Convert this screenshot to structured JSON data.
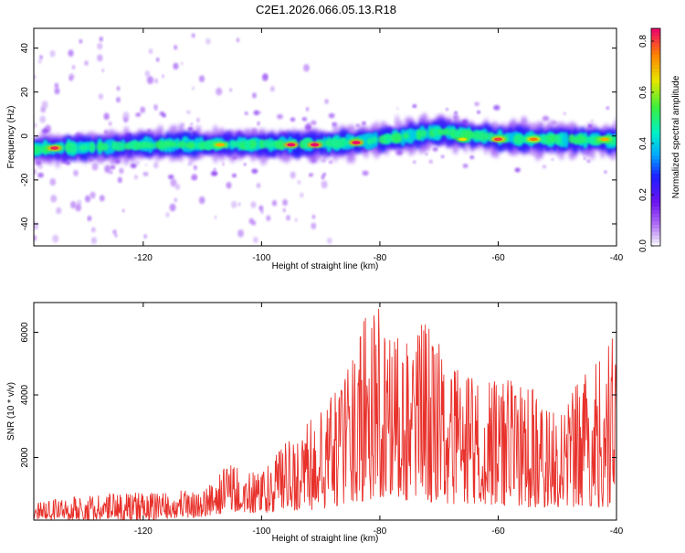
{
  "title": "C2E1.2026.066.05.13.R18",
  "chart_data": [
    {
      "type": "heatmap",
      "name": "spectrogram",
      "xlabel": "Height of straight line (km)",
      "ylabel": "Frequency (Hz)",
      "xlim": [
        -138.5,
        -40
      ],
      "ylim": [
        -50,
        49
      ],
      "xticks": [
        -120,
        -100,
        -80,
        -60,
        -40
      ],
      "yticks": [
        -40,
        -20,
        0,
        20,
        40
      ],
      "colorbar": {
        "label": "Normalized spectral amplitude",
        "range": [
          0.0,
          0.85
        ],
        "ticks": [
          "0.0",
          "0.2",
          "0.4",
          "0.6",
          "0.8"
        ],
        "tick_values": [
          0.0,
          0.2,
          0.4,
          0.6,
          0.8
        ]
      },
      "ridge": {
        "description_points": [
          [
            -138.5,
            -6
          ],
          [
            -120,
            -4
          ],
          [
            -100,
            -4
          ],
          [
            -85,
            -3
          ],
          [
            -75,
            0
          ],
          [
            -70,
            2
          ],
          [
            -60,
            -1
          ],
          [
            -40,
            -2
          ]
        ],
        "peaks": [
          {
            "x": -135,
            "y": -5.5,
            "amp": 0.82
          },
          {
            "x": -107,
            "y": -4,
            "amp": 0.7
          },
          {
            "x": -95,
            "y": -4,
            "amp": 0.85
          },
          {
            "x": -91,
            "y": -4,
            "amp": 0.85
          },
          {
            "x": -84,
            "y": -3,
            "amp": 0.85
          },
          {
            "x": -66,
            "y": -1.5,
            "amp": 0.65
          },
          {
            "x": -60,
            "y": -1.5,
            "amp": 0.8
          },
          {
            "x": -54,
            "y": -1.5,
            "amp": 0.75
          },
          {
            "x": -42,
            "y": -1.5,
            "amp": 0.7
          }
        ]
      }
    },
    {
      "type": "line",
      "name": "snr",
      "xlabel": "Height of straight line (km)",
      "ylabel": "SNR (10 * v/v)",
      "xlim": [
        -138.5,
        -40
      ],
      "ylim": [
        0,
        6950
      ],
      "xticks": [
        -120,
        -100,
        -80,
        -60,
        -40
      ],
      "yticks": [
        2000,
        4000,
        6000
      ],
      "color": "#e8312b",
      "envelope": [
        {
          "x": -138.5,
          "low": 0,
          "high": 600
        },
        {
          "x": -130,
          "low": 0,
          "high": 800
        },
        {
          "x": -120,
          "low": 0,
          "high": 900
        },
        {
          "x": -110,
          "low": 100,
          "high": 1000
        },
        {
          "x": -106,
          "low": 200,
          "high": 1800
        },
        {
          "x": -100,
          "low": 200,
          "high": 1500
        },
        {
          "x": -95,
          "low": 300,
          "high": 2700
        },
        {
          "x": -90,
          "low": 300,
          "high": 3600
        },
        {
          "x": -86,
          "low": 500,
          "high": 4500
        },
        {
          "x": -83,
          "low": 600,
          "high": 6500
        },
        {
          "x": -80,
          "low": 700,
          "high": 6800
        },
        {
          "x": -76,
          "low": 600,
          "high": 5500
        },
        {
          "x": -73,
          "low": 600,
          "high": 6700
        },
        {
          "x": -68,
          "low": 500,
          "high": 5000
        },
        {
          "x": -62,
          "low": 500,
          "high": 4500
        },
        {
          "x": -56,
          "low": 400,
          "high": 4500
        },
        {
          "x": -50,
          "low": 400,
          "high": 3500
        },
        {
          "x": -45,
          "low": 400,
          "high": 4800
        },
        {
          "x": -41,
          "low": 400,
          "high": 6200
        },
        {
          "x": -40,
          "low": 1500,
          "high": 6000
        }
      ]
    }
  ]
}
